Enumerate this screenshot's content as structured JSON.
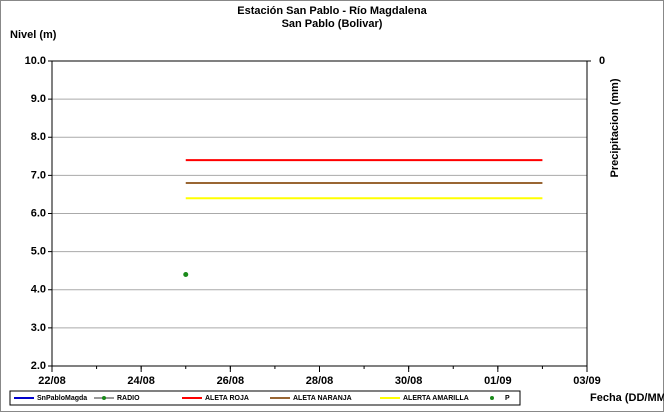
{
  "chart_data": {
    "type": "line",
    "title": "Estación San Pablo - Río Magdalena",
    "subtitle": "San Pablo (Bolivar)",
    "ylabel": "Nivel (m)",
    "y2label": "Precipitacion (mm)",
    "xlabel": "Fecha (DD/MM)",
    "xlim": [
      "22/08",
      "03/09"
    ],
    "xticks": [
      "22/08",
      "24/08",
      "26/08",
      "28/08",
      "30/08",
      "01/09",
      "03/09"
    ],
    "ylim": [
      2,
      10
    ],
    "yticks": [
      {
        "value": 2,
        "label": "2.0"
      },
      {
        "value": 3,
        "label": "3.0"
      },
      {
        "value": 4,
        "label": "4.0"
      },
      {
        "value": 5,
        "label": "5.0"
      },
      {
        "value": 6,
        "label": "6.0"
      },
      {
        "value": 7,
        "label": "7.0"
      },
      {
        "value": 8,
        "label": "8.0"
      },
      {
        "value": 9,
        "label": "9.0"
      },
      {
        "value": 10,
        "label": "10.0"
      }
    ],
    "y2lim": [
      1,
      0
    ],
    "y2ticks": [
      0
    ],
    "grid": true,
    "legend": "bottom",
    "series": [
      {
        "name": "SnPabloMagda",
        "color": "#0000cc",
        "style": "line",
        "x": [],
        "values": []
      },
      {
        "name": "RADIO",
        "color": "#999999",
        "marker_color": "#1a8a1a",
        "style": "line-marker",
        "x": [],
        "values": []
      },
      {
        "name": "ALETA ROJA",
        "color": "#ff0000",
        "style": "line",
        "x": [
          "25/08",
          "02/09"
        ],
        "values": [
          7.4,
          7.4
        ]
      },
      {
        "name": "ALETA NARANJA",
        "color": "#996633",
        "style": "line",
        "x": [
          "25/08",
          "02/09"
        ],
        "values": [
          6.8,
          6.8
        ]
      },
      {
        "name": "ALERTA AMARILLA",
        "color": "#ffff00",
        "style": "line",
        "x": [
          "25/08",
          "02/09"
        ],
        "values": [
          6.4,
          6.4
        ]
      },
      {
        "name": "P",
        "color": "#1a8a1a",
        "style": "marker",
        "x": [
          "25/08"
        ],
        "values": [
          4.4
        ]
      }
    ]
  }
}
